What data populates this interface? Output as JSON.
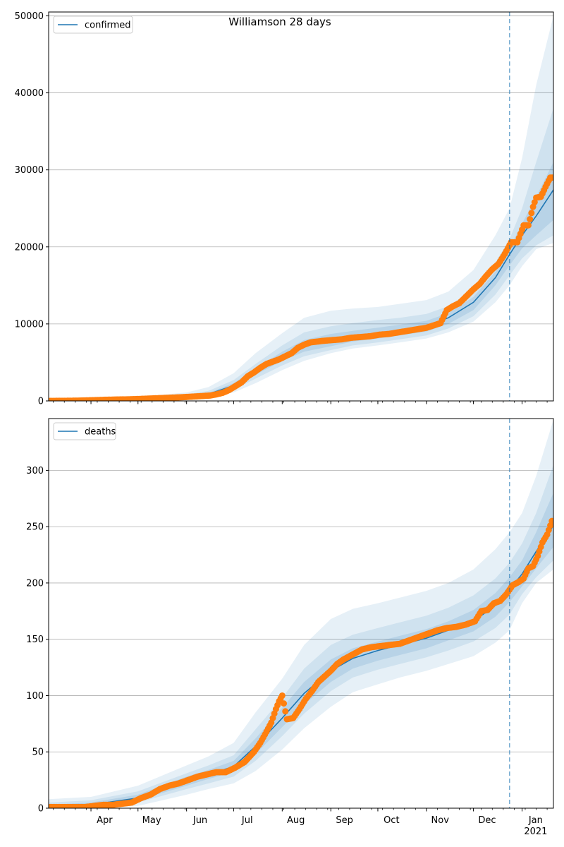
{
  "figure": {
    "title": "Williamson 28 days"
  },
  "colors": {
    "model_line": "#1f77b4",
    "band": "#1f77b4",
    "observed": "#ff7f0e",
    "today_line": "#1f77b4",
    "grid": "#b0b0b0",
    "axis": "#000000"
  },
  "chart_data": [
    {
      "type": "line",
      "panel": "top",
      "title": "Williamson 28 days",
      "xlabel": "",
      "ylabel": "",
      "x_range": [
        "2020-03-05",
        "2021-01-21"
      ],
      "ylim": [
        0,
        50500
      ],
      "yticks": [
        0,
        10000,
        20000,
        30000,
        40000,
        50000
      ],
      "grid": "y",
      "legend": {
        "placement": "top-left",
        "entries": [
          "confirmed"
        ]
      },
      "vertical_marker_date": "2020-12-24",
      "series": [
        {
          "name": "confirmed",
          "kind": "model",
          "x": [
            "2020-03-05",
            "2020-04-01",
            "2020-05-01",
            "2020-06-01",
            "2020-06-15",
            "2020-07-01",
            "2020-07-15",
            "2020-08-01",
            "2020-08-15",
            "2020-09-01",
            "2020-09-15",
            "2020-10-01",
            "2020-10-15",
            "2020-11-01",
            "2020-11-15",
            "2020-12-01",
            "2020-12-15",
            "2020-12-24",
            "2021-01-01",
            "2021-01-10",
            "2021-01-21"
          ],
          "y": [
            0,
            60,
            220,
            600,
            900,
            2000,
            3800,
            5800,
            7100,
            7900,
            8400,
            8800,
            9200,
            9700,
            10800,
            12800,
            16000,
            19000,
            21500,
            24000,
            27400
          ]
        },
        {
          "name": "",
          "kind": "bands",
          "x": [
            "2020-03-05",
            "2020-04-01",
            "2020-05-01",
            "2020-06-01",
            "2020-06-15",
            "2020-07-01",
            "2020-07-15",
            "2020-08-01",
            "2020-08-15",
            "2020-09-01",
            "2020-09-15",
            "2020-10-01",
            "2020-10-15",
            "2020-11-01",
            "2020-11-15",
            "2020-12-01",
            "2020-12-15",
            "2020-12-24",
            "2021-01-01",
            "2021-01-10",
            "2021-01-21"
          ],
          "outer_upper": [
            200,
            180,
            500,
            1100,
            1800,
            3600,
            6200,
            8800,
            10800,
            11700,
            12000,
            12200,
            12600,
            13100,
            14200,
            17000,
            21500,
            25000,
            31500,
            41000,
            50000
          ],
          "mid_upper": [
            120,
            120,
            360,
            850,
            1300,
            2700,
            4800,
            7200,
            8900,
            9700,
            10100,
            10500,
            10800,
            11300,
            12300,
            14500,
            18000,
            21000,
            25000,
            31000,
            38000
          ],
          "inner_upper": [
            60,
            90,
            280,
            700,
            1050,
            2300,
            4200,
            6400,
            7900,
            8700,
            9100,
            9500,
            9900,
            10400,
            11400,
            13500,
            16800,
            19800,
            23000,
            26500,
            31000
          ],
          "inner_lower": [
            0,
            40,
            170,
            500,
            760,
            1750,
            3400,
            5200,
            6400,
            7100,
            7700,
            8100,
            8500,
            9000,
            10000,
            11800,
            15000,
            17600,
            19800,
            21500,
            23500
          ],
          "mid_lower": [
            0,
            20,
            120,
            380,
            620,
            1450,
            2900,
            4600,
            5800,
            6600,
            7200,
            7600,
            8000,
            8500,
            9400,
            11000,
            13800,
            16300,
            18500,
            20200,
            21500
          ],
          "outer_lower": [
            0,
            0,
            60,
            250,
            450,
            1100,
            2300,
            4000,
            5200,
            6200,
            6800,
            7200,
            7600,
            8100,
            8900,
            10300,
            12800,
            15000,
            17500,
            19700,
            20500
          ]
        },
        {
          "name": "",
          "kind": "observed",
          "x": [
            "2020-03-06",
            "2020-03-12",
            "2020-03-18",
            "2020-03-24",
            "2020-03-30",
            "2020-04-05",
            "2020-04-11",
            "2020-04-17",
            "2020-04-23",
            "2020-04-29",
            "2020-05-05",
            "2020-05-11",
            "2020-05-17",
            "2020-05-23",
            "2020-05-29",
            "2020-06-04",
            "2020-06-10",
            "2020-06-16",
            "2020-06-20",
            "2020-06-24",
            "2020-06-28",
            "2020-07-02",
            "2020-07-06",
            "2020-07-10",
            "2020-07-14",
            "2020-07-18",
            "2020-07-22",
            "2020-07-26",
            "2020-07-30",
            "2020-08-03",
            "2020-08-07",
            "2020-08-11",
            "2020-08-15",
            "2020-08-19",
            "2020-08-23",
            "2020-08-27",
            "2020-09-02",
            "2020-09-08",
            "2020-09-14",
            "2020-09-20",
            "2020-09-26",
            "2020-10-02",
            "2020-10-08",
            "2020-10-14",
            "2020-10-20",
            "2020-10-26",
            "2020-11-01",
            "2020-11-07",
            "2020-11-10",
            "2020-11-14",
            "2020-11-18",
            "2020-11-22",
            "2020-11-26",
            "2020-12-01",
            "2020-12-05",
            "2020-12-09",
            "2020-12-13",
            "2020-12-17",
            "2020-12-21",
            "2020-12-25",
            "2020-12-29",
            "2021-01-02",
            "2021-01-05",
            "2021-01-08",
            "2021-01-10",
            "2021-01-13",
            "2021-01-16",
            "2021-01-19",
            "2021-01-21"
          ],
          "y": [
            0,
            10,
            20,
            40,
            70,
            110,
            150,
            180,
            200,
            230,
            280,
            330,
            380,
            430,
            480,
            550,
            620,
            700,
            850,
            1050,
            1400,
            1900,
            2400,
            3200,
            3700,
            4300,
            4800,
            5100,
            5400,
            5800,
            6200,
            6900,
            7300,
            7600,
            7700,
            7800,
            7900,
            8000,
            8200,
            8300,
            8400,
            8600,
            8700,
            8900,
            9100,
            9300,
            9500,
            9900,
            10100,
            11800,
            12300,
            12700,
            13500,
            14500,
            15200,
            16200,
            17100,
            17800,
            19100,
            20600,
            20600,
            22800,
            22800,
            25200,
            26400,
            26500,
            27800,
            29000,
            29000
          ]
        }
      ]
    },
    {
      "type": "line",
      "panel": "bottom",
      "title": "",
      "xlabel": "",
      "ylabel": "",
      "x_range": [
        "2020-03-05",
        "2021-01-21"
      ],
      "ylim": [
        0,
        346
      ],
      "yticks": [
        0,
        50,
        100,
        150,
        200,
        250,
        300
      ],
      "xticks": [
        "Apr",
        "May",
        "Jun",
        "Jul",
        "Aug",
        "Sep",
        "Oct",
        "Nov",
        "Dec",
        "Jan\n2021"
      ],
      "grid": "y",
      "legend": {
        "placement": "top-left",
        "entries": [
          "deaths"
        ]
      },
      "vertical_marker_date": "2020-12-24",
      "series": [
        {
          "name": "deaths",
          "kind": "model",
          "x": [
            "2020-03-05",
            "2020-04-01",
            "2020-05-01",
            "2020-06-01",
            "2020-06-15",
            "2020-07-01",
            "2020-07-15",
            "2020-08-01",
            "2020-08-15",
            "2020-09-01",
            "2020-09-15",
            "2020-10-01",
            "2020-10-15",
            "2020-11-01",
            "2020-11-15",
            "2020-12-01",
            "2020-12-15",
            "2020-12-24",
            "2021-01-01",
            "2021-01-10",
            "2021-01-21"
          ],
          "y": [
            1,
            3,
            9,
            24,
            30,
            37,
            55,
            80,
            102,
            122,
            133,
            140,
            145,
            151,
            158,
            166,
            180,
            194,
            208,
            228,
            251
          ]
        },
        {
          "name": "",
          "kind": "bands",
          "x": [
            "2020-03-05",
            "2020-04-01",
            "2020-05-01",
            "2020-06-01",
            "2020-06-15",
            "2020-07-01",
            "2020-07-15",
            "2020-08-01",
            "2020-08-15",
            "2020-09-01",
            "2020-09-15",
            "2020-10-01",
            "2020-10-15",
            "2020-11-01",
            "2020-11-15",
            "2020-12-01",
            "2020-12-15",
            "2020-12-24",
            "2021-01-01",
            "2021-01-10",
            "2021-01-21"
          ],
          "outer_upper": [
            8,
            10,
            20,
            38,
            46,
            58,
            85,
            115,
            145,
            168,
            177,
            182,
            187,
            193,
            200,
            212,
            230,
            245,
            262,
            295,
            345
          ],
          "mid_upper": [
            5,
            7,
            15,
            31,
            38,
            47,
            70,
            98,
            124,
            145,
            154,
            160,
            165,
            171,
            178,
            189,
            204,
            218,
            235,
            262,
            305
          ],
          "inner_upper": [
            3,
            5,
            12,
            28,
            34,
            42,
            62,
            89,
            112,
            132,
            142,
            148,
            153,
            159,
            166,
            176,
            191,
            205,
            220,
            245,
            280
          ],
          "inner_lower": [
            0,
            1,
            7,
            20,
            26,
            32,
            48,
            72,
            92,
            112,
            124,
            131,
            136,
            142,
            149,
            157,
            170,
            183,
            197,
            213,
            232
          ],
          "mid_lower": [
            0,
            0,
            5,
            17,
            22,
            28,
            42,
            64,
            84,
            104,
            116,
            123,
            128,
            134,
            140,
            148,
            160,
            172,
            190,
            205,
            220
          ],
          "outer_lower": [
            0,
            0,
            2,
            12,
            17,
            22,
            33,
            52,
            71,
            90,
            103,
            110,
            116,
            122,
            128,
            135,
            147,
            158,
            182,
            200,
            212
          ]
        },
        {
          "name": "",
          "kind": "observed",
          "x": [
            "2020-03-06",
            "2020-03-14",
            "2020-03-22",
            "2020-03-28",
            "2020-04-03",
            "2020-04-09",
            "2020-04-15",
            "2020-04-21",
            "2020-04-27",
            "2020-05-03",
            "2020-05-09",
            "2020-05-15",
            "2020-05-21",
            "2020-05-27",
            "2020-06-02",
            "2020-06-08",
            "2020-06-14",
            "2020-06-20",
            "2020-06-26",
            "2020-07-02",
            "2020-07-08",
            "2020-07-14",
            "2020-07-18",
            "2020-07-22",
            "2020-07-25",
            "2020-07-28",
            "2020-07-30",
            "2020-08-01",
            "2020-08-04",
            "2020-08-08",
            "2020-08-12",
            "2020-08-16",
            "2020-08-20",
            "2020-08-24",
            "2020-08-28",
            "2020-09-01",
            "2020-09-05",
            "2020-09-09",
            "2020-09-13",
            "2020-09-17",
            "2020-09-21",
            "2020-09-27",
            "2020-10-03",
            "2020-10-09",
            "2020-10-15",
            "2020-10-21",
            "2020-10-27",
            "2020-11-02",
            "2020-11-08",
            "2020-11-14",
            "2020-11-20",
            "2020-11-26",
            "2020-12-02",
            "2020-12-06",
            "2020-12-10",
            "2020-12-14",
            "2020-12-18",
            "2020-12-22",
            "2020-12-26",
            "2020-12-30",
            "2021-01-02",
            "2021-01-05",
            "2021-01-08",
            "2021-01-11",
            "2021-01-14",
            "2021-01-17",
            "2021-01-20"
          ],
          "y": [
            1,
            1,
            1,
            1,
            2,
            3,
            3,
            4,
            5,
            9,
            12,
            17,
            20,
            22,
            25,
            28,
            30,
            32,
            32,
            36,
            41,
            50,
            58,
            68,
            76,
            88,
            95,
            100,
            79,
            80,
            88,
            97,
            104,
            112,
            117,
            122,
            128,
            132,
            135,
            138,
            141,
            143,
            144,
            145,
            146,
            149,
            152,
            155,
            158,
            160,
            161,
            163,
            166,
            175,
            176,
            182,
            184,
            190,
            198,
            201,
            204,
            213,
            215,
            224,
            236,
            243,
            255
          ]
        }
      ]
    }
  ]
}
